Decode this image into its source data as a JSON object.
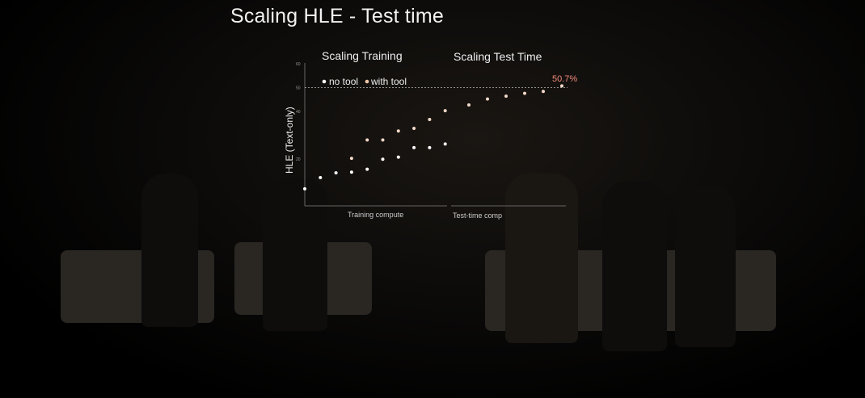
{
  "slide_title": "Scaling HLE - Test time",
  "chart_data": {
    "type": "scatter",
    "section_titles": [
      "Scaling Training",
      "Scaling Test Time"
    ],
    "ylabel": "HLE (Text-only)",
    "xlabels": [
      "Training compute",
      "Test-time comp"
    ],
    "y_ticks": [
      20,
      40,
      50,
      60
    ],
    "ylim": [
      0,
      60
    ],
    "legend": [
      "no tool",
      "with tool"
    ],
    "legend_placement": "top-left",
    "reference_line": 50,
    "annotation": "50.7%",
    "series": [
      {
        "name": "no tool",
        "phase": "training",
        "x": [
          0,
          1,
          2,
          3,
          4,
          5,
          6,
          7,
          8,
          9
        ],
        "values": [
          7.5,
          12.2,
          14.2,
          14.5,
          15.7,
          19.9,
          20.8,
          24.8,
          24.8,
          26.3
        ],
        "color": "#ffffff"
      },
      {
        "name": "with tool",
        "phase": "training",
        "x": [
          3,
          4,
          5,
          6,
          7,
          8,
          9
        ],
        "values": [
          20.3,
          28,
          28,
          31.8,
          32.9,
          36.6,
          40.3
        ],
        "color": "#f3d9c8"
      },
      {
        "name": "with tool",
        "phase": "test-time",
        "x": [
          0,
          1,
          2,
          3,
          4,
          5
        ],
        "values": [
          42.7,
          45.2,
          46.4,
          47.6,
          48.4,
          50.7
        ],
        "color": "#f3d9c8"
      }
    ],
    "colors": {
      "annotation": "#f08a7a",
      "reference_line": "#bbbbbb"
    }
  }
}
